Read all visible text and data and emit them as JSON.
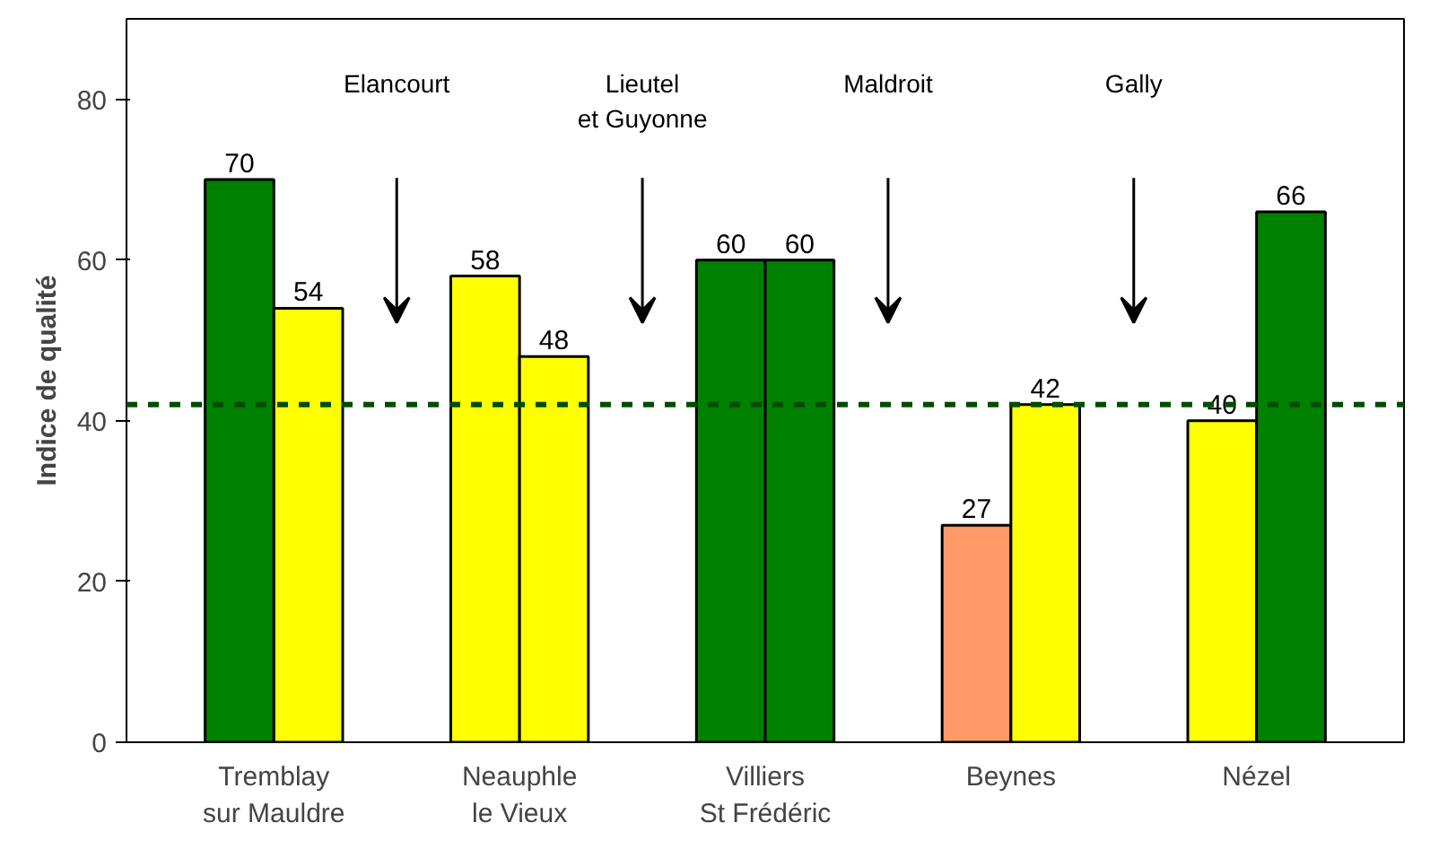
{
  "chart_data": {
    "type": "bar",
    "ylabel": "Indice de qualité",
    "categories": [
      "Tremblay sur Mauldre",
      "Neauphle le Vieux",
      "Villiers St Frédéric",
      "Beynes",
      "Nézel"
    ],
    "series": [
      {
        "values": [
          70,
          58,
          60,
          27,
          40
        ],
        "colors": [
          "#008000",
          "#ffff00",
          "#008000",
          "#ff9966",
          "#ffff00"
        ]
      },
      {
        "values": [
          54,
          48,
          60,
          42,
          66
        ],
        "colors": [
          "#ffff00",
          "#ffff00",
          "#008000",
          "#ffff00",
          "#008000"
        ]
      }
    ],
    "ylim": [
      0,
      90
    ],
    "yticks": [
      0,
      20,
      40,
      60,
      80
    ],
    "ref_lines": [
      {
        "axis": "y",
        "value": 42,
        "color": "#004d00",
        "line_style": "dashed"
      }
    ],
    "annotations": [
      "Elancourt",
      "Lieutel et Guyonne",
      "Maldroit",
      "Gally"
    ],
    "data_labels": true,
    "grid": false
  }
}
